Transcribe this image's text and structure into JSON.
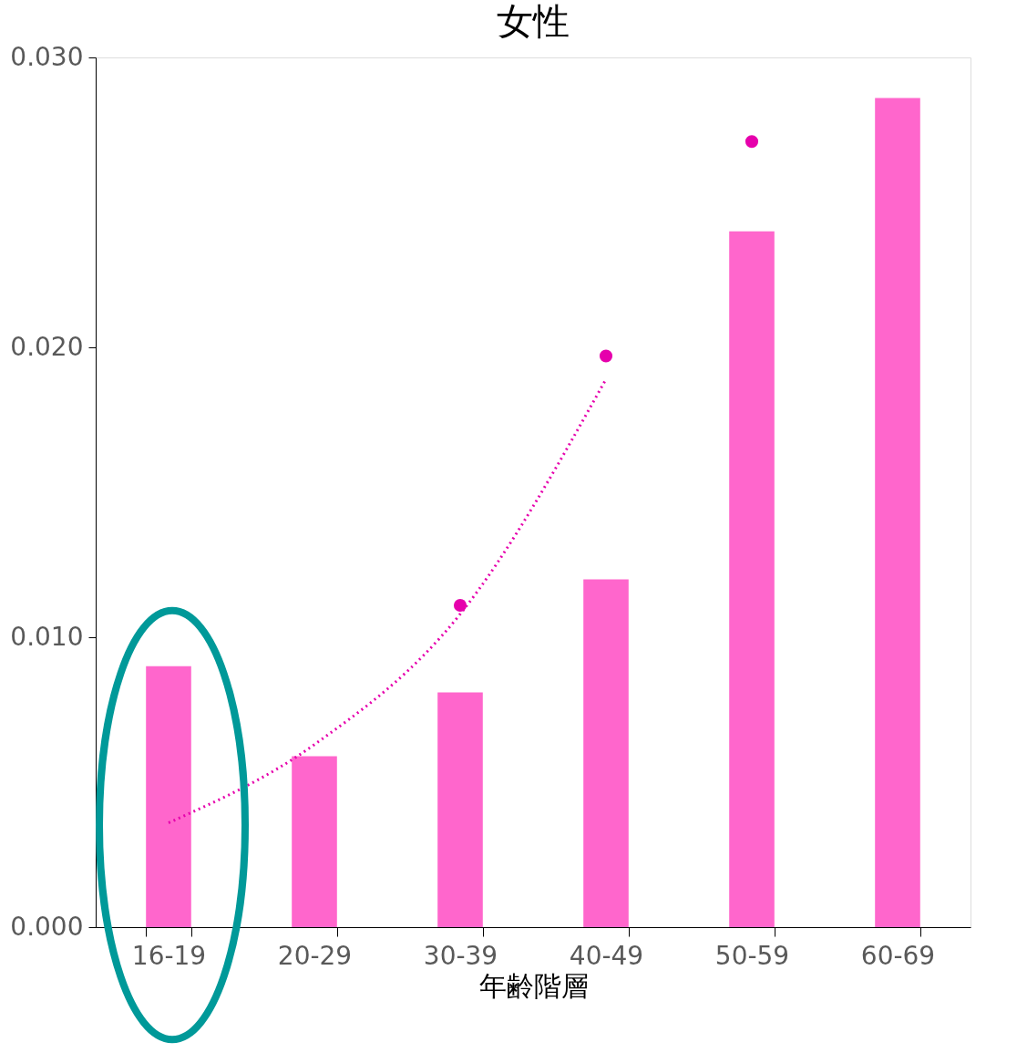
{
  "chart_data": {
    "type": "bar",
    "title": "女性",
    "xlabel": "年齢階層",
    "categories": [
      "16-19",
      "20-29",
      "30-39",
      "40-49",
      "50-59",
      "60-69"
    ],
    "series": [
      {
        "color": "#ff66cc",
        "values": [
          0.009,
          0.0059,
          0.0081,
          0.012,
          0.024,
          0.0286
        ]
      },
      {
        "type": "scatter",
        "color": "#e600ac",
        "x": [
          "30-39",
          "40-49",
          "50-59"
        ],
        "values": [
          0.0111,
          0.0197,
          0.0271
        ],
        "marker": "circle"
      },
      {
        "type": "line",
        "color": "#e600ac",
        "line_style": "dotted",
        "values": [
          0.0036,
          0.0063,
          0.0108,
          0.0189,
          null,
          null
        ]
      }
    ],
    "ylim": [
      0,
      0.03
    ],
    "yticks": [
      {
        "value": 0,
        "label": "0.000"
      },
      {
        "value": 0.01,
        "label": "0.010"
      },
      {
        "value": 0.02,
        "label": "0.020"
      },
      {
        "value": 0.03,
        "label": "0.030"
      }
    ],
    "grid": false
  }
}
